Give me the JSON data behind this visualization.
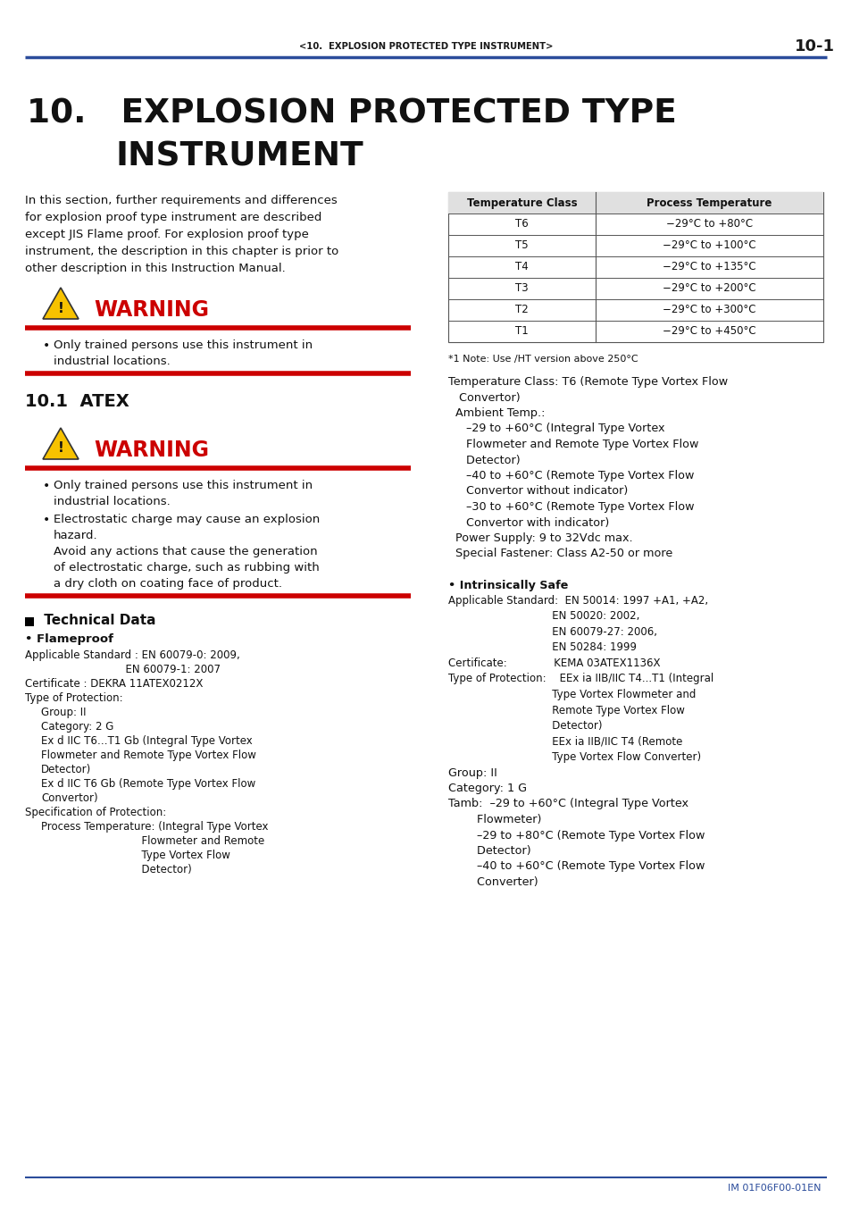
{
  "header_text": "<10.  EXPLOSION PROTECTED TYPE INSTRUMENT>",
  "header_page": "10-1",
  "header_line_color": "#2B4C9B",
  "bg_color": "#ffffff",
  "footer_text": "IM 01F06F00-01EN",
  "table_headers": [
    "Temperature Class",
    "Process Temperature"
  ],
  "table_rows": [
    [
      "T6",
      "−29°C to +80°C"
    ],
    [
      "T5",
      "−29°C to +100°C"
    ],
    [
      "T4",
      "−29°C to +135°C"
    ],
    [
      "T3",
      "−29°C to +200°C"
    ],
    [
      "T2",
      "−29°C to +300°C"
    ],
    [
      "T1",
      "−29°C to +450°C"
    ]
  ],
  "table_note": "*1 Note: Use /HT version above 250°C",
  "warning_color": "#cc0000",
  "red_line_color": "#cc0000",
  "blue_color": "#2B4C9B"
}
